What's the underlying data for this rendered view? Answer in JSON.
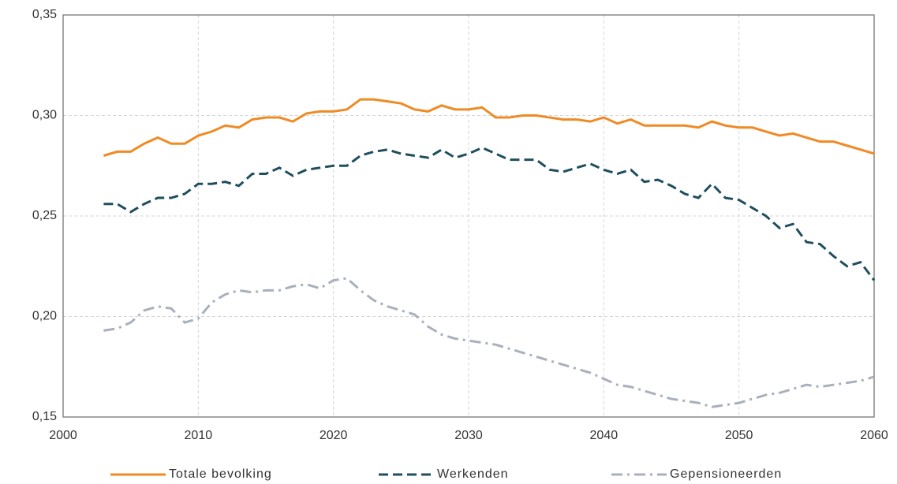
{
  "chart_data": {
    "type": "line",
    "x": [
      2003,
      2004,
      2005,
      2006,
      2007,
      2008,
      2009,
      2010,
      2011,
      2012,
      2013,
      2014,
      2015,
      2016,
      2017,
      2018,
      2019,
      2020,
      2021,
      2022,
      2023,
      2024,
      2025,
      2026,
      2027,
      2028,
      2029,
      2030,
      2031,
      2032,
      2033,
      2034,
      2035,
      2036,
      2037,
      2038,
      2039,
      2040,
      2041,
      2042,
      2043,
      2044,
      2045,
      2046,
      2047,
      2048,
      2049,
      2050,
      2051,
      2052,
      2053,
      2054,
      2055,
      2056,
      2057,
      2058,
      2059,
      2060
    ],
    "series": [
      {
        "name": "Totale bevolking",
        "color": "#f08a24",
        "dash": "solid",
        "values": [
          0.28,
          0.282,
          0.282,
          0.286,
          0.289,
          0.286,
          0.286,
          0.29,
          0.292,
          0.295,
          0.294,
          0.298,
          0.299,
          0.299,
          0.297,
          0.301,
          0.302,
          0.302,
          0.303,
          0.308,
          0.308,
          0.307,
          0.306,
          0.303,
          0.302,
          0.305,
          0.303,
          0.303,
          0.304,
          0.299,
          0.299,
          0.3,
          0.3,
          0.299,
          0.298,
          0.298,
          0.297,
          0.299,
          0.296,
          0.298,
          0.295,
          0.295,
          0.295,
          0.295,
          0.294,
          0.297,
          0.295,
          0.294,
          0.294,
          0.292,
          0.29,
          0.291,
          0.289,
          0.287,
          0.287,
          0.285,
          0.283,
          0.281
        ]
      },
      {
        "name": "Werkenden",
        "color": "#1f4e5f",
        "dash": "dashed",
        "values": [
          0.256,
          0.256,
          0.252,
          0.256,
          0.259,
          0.259,
          0.261,
          0.266,
          0.266,
          0.267,
          0.265,
          0.271,
          0.271,
          0.274,
          0.27,
          0.273,
          0.274,
          0.275,
          0.275,
          0.28,
          0.282,
          0.283,
          0.281,
          0.28,
          0.279,
          0.283,
          0.279,
          0.281,
          0.284,
          0.281,
          0.278,
          0.278,
          0.278,
          0.273,
          0.272,
          0.274,
          0.276,
          0.273,
          0.271,
          0.273,
          0.267,
          0.268,
          0.265,
          0.261,
          0.259,
          0.266,
          0.259,
          0.258,
          0.254,
          0.25,
          0.244,
          0.246,
          0.237,
          0.236,
          0.23,
          0.225,
          0.227,
          0.218
        ]
      },
      {
        "name": "Gepensioneerden",
        "color": "#a9b0bd",
        "dash": "dashdot",
        "values": [
          0.193,
          0.194,
          0.197,
          0.203,
          0.205,
          0.204,
          0.197,
          0.199,
          0.207,
          0.211,
          0.213,
          0.212,
          0.213,
          0.213,
          0.215,
          0.216,
          0.214,
          0.218,
          0.219,
          0.213,
          0.208,
          0.205,
          0.203,
          0.201,
          0.195,
          0.191,
          0.189,
          0.188,
          0.187,
          0.186,
          0.184,
          0.182,
          0.18,
          0.178,
          0.176,
          0.174,
          0.172,
          0.169,
          0.166,
          0.165,
          0.163,
          0.161,
          0.159,
          0.158,
          0.157,
          0.155,
          0.156,
          0.157,
          0.159,
          0.161,
          0.162,
          0.164,
          0.166,
          0.165,
          0.166,
          0.167,
          0.168,
          0.17
        ]
      }
    ],
    "xlim": [
      2000,
      2060
    ],
    "xticks": [
      2000,
      2010,
      2020,
      2030,
      2040,
      2050,
      2060
    ],
    "ylim": [
      0.15,
      0.35
    ],
    "yticks": [
      {
        "value": 0.15,
        "label": "0,15"
      },
      {
        "value": 0.2,
        "label": "0,20"
      },
      {
        "value": 0.25,
        "label": "0,25"
      },
      {
        "value": 0.3,
        "label": "0,30"
      },
      {
        "value": 0.35,
        "label": "0,35"
      }
    ],
    "grid": true,
    "legend": "bottom"
  }
}
